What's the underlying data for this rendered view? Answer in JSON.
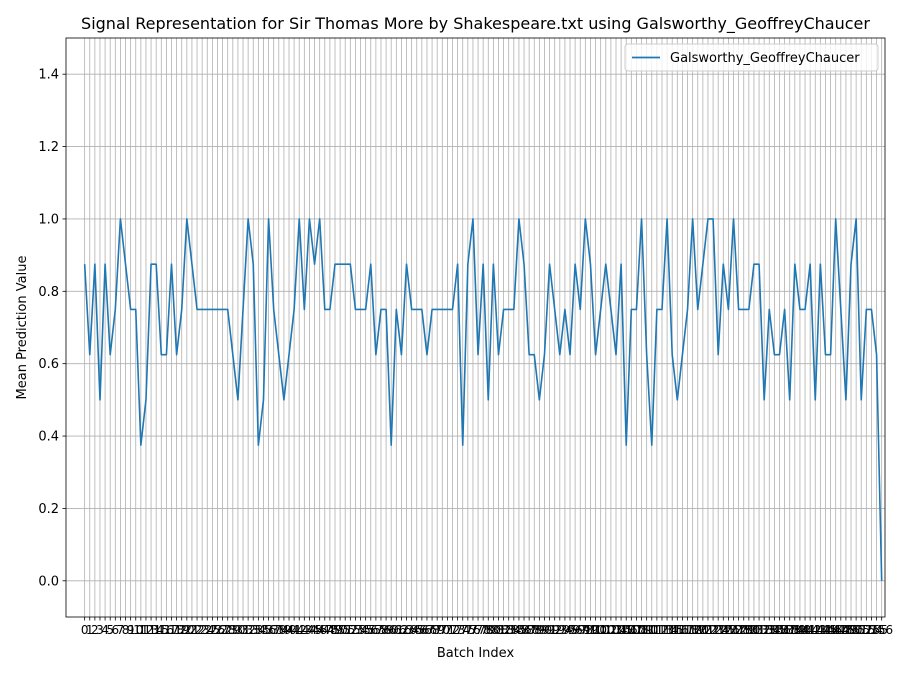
{
  "chart_data": {
    "type": "line",
    "title": "Signal Representation for Sir Thomas More by Shakespeare.txt using Galsworthy_GeoffreyChaucer",
    "xlabel": "Batch Index",
    "ylabel": "Mean Prediction Value",
    "xlim": [
      -3.65,
      156.65
    ],
    "ylim": [
      -0.1,
      1.5
    ],
    "y_ticks": [
      0.0,
      0.2,
      0.4,
      0.6,
      0.8,
      1.0,
      1.2,
      1.4
    ],
    "grid": true,
    "legend": "top-right",
    "series": [
      {
        "name": "Galsworthy_GeoffreyChaucer",
        "color": "#1f77b4",
        "values": [
          0.875,
          0.625,
          0.875,
          0.5,
          0.875,
          0.625,
          0.75,
          1.0,
          0.875,
          0.75,
          0.75,
          0.375,
          0.5,
          0.875,
          0.875,
          0.625,
          0.625,
          0.875,
          0.625,
          0.75,
          1.0,
          0.875,
          0.75,
          0.75,
          0.75,
          0.75,
          0.75,
          0.75,
          0.75,
          0.625,
          0.5,
          0.75,
          1.0,
          0.875,
          0.375,
          0.5,
          1.0,
          0.75,
          0.625,
          0.5,
          0.625,
          0.75,
          1.0,
          0.75,
          1.0,
          0.875,
          1.0,
          0.75,
          0.75,
          0.875,
          0.875,
          0.875,
          0.875,
          0.75,
          0.75,
          0.75,
          0.875,
          0.625,
          0.75,
          0.75,
          0.375,
          0.75,
          0.625,
          0.875,
          0.75,
          0.75,
          0.75,
          0.625,
          0.75,
          0.75,
          0.75,
          0.75,
          0.75,
          0.875,
          0.375,
          0.875,
          1.0,
          0.625,
          0.875,
          0.5,
          0.875,
          0.625,
          0.75,
          0.75,
          0.75,
          1.0,
          0.875,
          0.625,
          0.625,
          0.5,
          0.625,
          0.875,
          0.75,
          0.625,
          0.75,
          0.625,
          0.875,
          0.75,
          1.0,
          0.875,
          0.625,
          0.75,
          0.875,
          0.75,
          0.625,
          0.875,
          0.375,
          0.75,
          0.75,
          1.0,
          0.625,
          0.375,
          0.75,
          0.75,
          1.0,
          0.625,
          0.5,
          0.625,
          0.75,
          1.0,
          0.75,
          0.875,
          1.0,
          1.0,
          0.625,
          0.875,
          0.75,
          1.0,
          0.75,
          0.75,
          0.75,
          0.875,
          0.875,
          0.5,
          0.75,
          0.625,
          0.625,
          0.75,
          0.5,
          0.875,
          0.75,
          0.75,
          0.875,
          0.5,
          0.875,
          0.625,
          0.625,
          1.0,
          0.75,
          0.5,
          0.875,
          1.0,
          0.5,
          0.75,
          0.75,
          0.625,
          0.0
        ]
      }
    ]
  }
}
